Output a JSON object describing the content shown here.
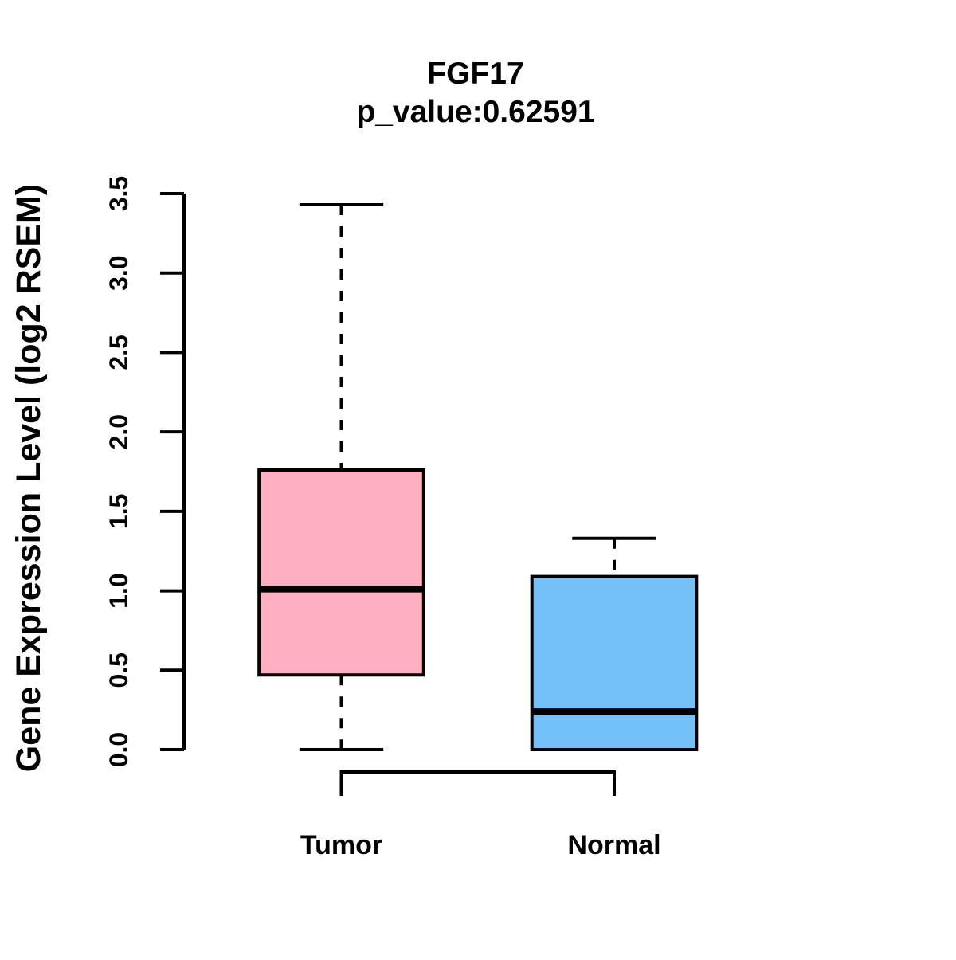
{
  "chart_data": {
    "type": "boxplot",
    "title": "FGF17",
    "subtitle": "p_value:0.62591",
    "ylabel": "Gene Expression Level (log2 RSEM)",
    "xlabel": "",
    "ylim": [
      0.0,
      3.5
    ],
    "yticks": [
      0.0,
      0.5,
      1.0,
      1.5,
      2.0,
      2.5,
      3.0,
      3.5
    ],
    "ytick_decimals": 1,
    "categories": [
      "Tumor",
      "Normal"
    ],
    "series": [
      {
        "name": "Tumor",
        "fill_color": "#FFAEC1",
        "min": 0.0,
        "q1": 0.47,
        "median": 1.01,
        "q3": 1.76,
        "max": 3.43
      },
      {
        "name": "Normal",
        "fill_color": "#75C0F8",
        "min": 0.0,
        "q1": 0.0,
        "median": 0.24,
        "q3": 1.09,
        "max": 1.33
      }
    ],
    "stroke_color": "#000000",
    "background_color": "#FFFFFF",
    "whisker_style": "dashed",
    "comparison_bracket": {
      "between": [
        "Tumor",
        "Normal"
      ]
    },
    "grid": "off",
    "legend": "none"
  }
}
